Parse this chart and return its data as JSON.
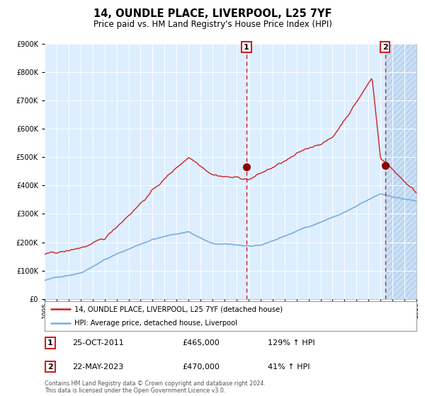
{
  "title": "14, OUNDLE PLACE, LIVERPOOL, L25 7YF",
  "subtitle": "Price paid vs. HM Land Registry's House Price Index (HPI)",
  "hpi_color": "#7aade0",
  "price_color": "#cc2222",
  "marker_color": "#8B0000",
  "background_color": "#ffffff",
  "chart_bg": "#ddeeff",
  "ylim": [
    0,
    900000
  ],
  "yticks": [
    0,
    100000,
    200000,
    300000,
    400000,
    500000,
    600000,
    700000,
    800000,
    900000
  ],
  "sale1_year": 2011.82,
  "sale1_price": 465000,
  "sale1_label": "1",
  "sale2_year": 2023.39,
  "sale2_price": 470000,
  "sale2_label": "2",
  "legend_line1": "14, OUNDLE PLACE, LIVERPOOL, L25 7YF (detached house)",
  "legend_line2": "HPI: Average price, detached house, Liverpool",
  "table_row1": [
    "1",
    "25-OCT-2011",
    "£465,000",
    "129% ↑ HPI"
  ],
  "table_row2": [
    "2",
    "22-MAY-2023",
    "£470,000",
    "41% ↑ HPI"
  ],
  "footnote": "Contains HM Land Registry data © Crown copyright and database right 2024.\nThis data is licensed under the Open Government Licence v3.0.",
  "xmin": 1995,
  "xmax": 2026
}
